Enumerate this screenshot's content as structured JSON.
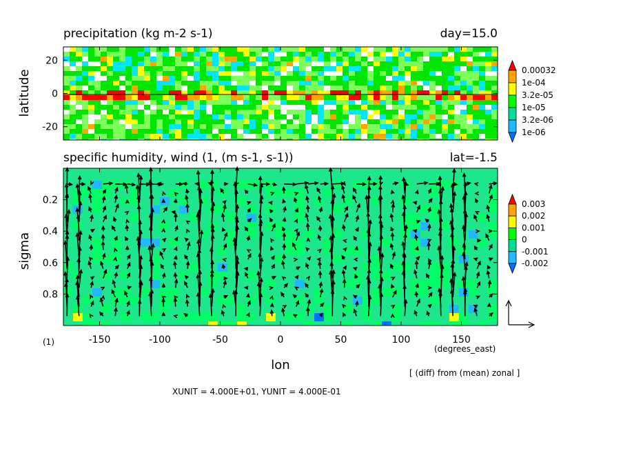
{
  "chart_data": [
    {
      "type": "heatmap",
      "title": "precipitation (kg m-2 s-1)",
      "right_title": "day=15.0",
      "ylabel": "latitude",
      "xlim": [
        -180,
        180
      ],
      "ylim": [
        -28,
        28
      ],
      "yticks": [
        "20",
        "0",
        "-20"
      ],
      "ytick_values": [
        20,
        0,
        -20
      ],
      "colorbar": {
        "labels": [
          "0.00032",
          "1e-04",
          "3.2e-05",
          "1e-05",
          "3.2e-06",
          "1e-06"
        ],
        "colors": [
          "#ff0000",
          "#ffa500",
          "#ffff00",
          "#00ff00",
          "#00dd9a",
          "#22b8ff",
          "#0070ff"
        ]
      },
      "fill_colors": {
        "white": "#ffffff",
        "cyan": "#00e6ff",
        "lightgreen": "#7dff5a",
        "green": "#00e600",
        "yellow": "#ffff00",
        "orange": "#ffa500",
        "red": "#ff0000"
      }
    },
    {
      "type": "heatmap",
      "title": "specific humidity, wind (1, (m s-1, s-1))",
      "right_title": "lat=-1.5",
      "ylabel": "sigma",
      "xlabel": "lon",
      "xunit_label": "(degrees_east)",
      "xlim": [
        -180,
        180
      ],
      "ylim": [
        1.0,
        0.0
      ],
      "xticks": [
        "-150",
        "-100",
        "-50",
        "0",
        "50",
        "100",
        "150"
      ],
      "xtick_values": [
        -150,
        -100,
        -50,
        0,
        50,
        100,
        150
      ],
      "yticks": [
        "0.2",
        "0.4",
        "0.6",
        "0.8"
      ],
      "ytick_values": [
        0.2,
        0.4,
        0.6,
        0.8
      ],
      "colorbar": {
        "labels": [
          "0.003",
          "0.002",
          "0.001",
          "0",
          "-0.001",
          "-0.002"
        ],
        "colors": [
          "#ff0000",
          "#ffa500",
          "#ffff00",
          "#00ff00",
          "#00dd9a",
          "#22b8ff",
          "#0070ff"
        ]
      },
      "fill_colors": {
        "base": "#1ee68c",
        "light": "#00ff66",
        "blue": "#22b8ff",
        "darkblue": "#0070ff",
        "yellow": "#ffff00"
      },
      "anomaly_label": "[ (diff) from (mean) zonal ]",
      "panel_index": "(1)",
      "units_text": "XUNIT = 4.000E+01, YUNIT = 4.000E-01"
    }
  ]
}
